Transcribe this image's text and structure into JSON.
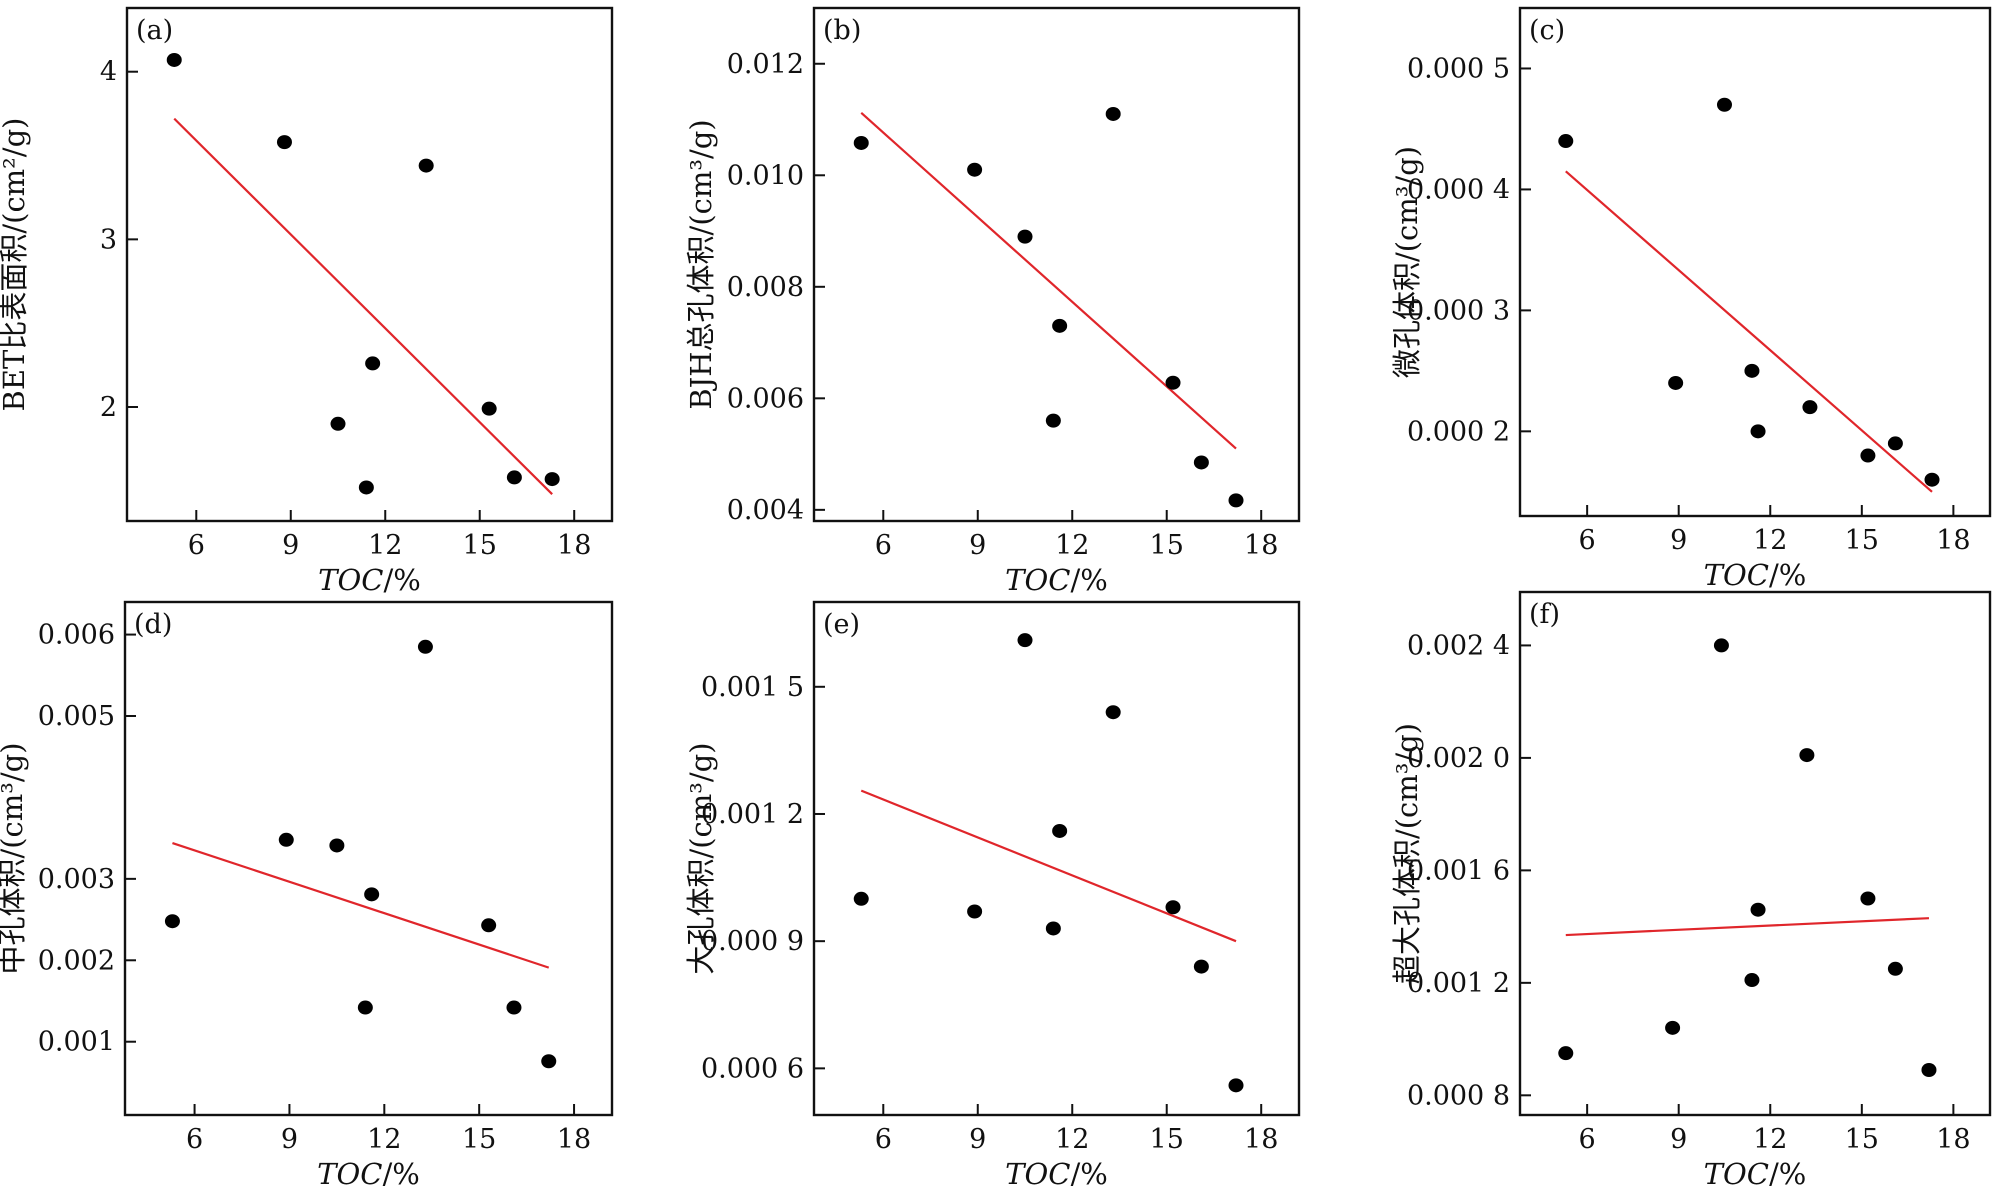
{
  "chart_data": [
    {
      "type": "scatter",
      "panel": "(a)",
      "ylabel": "BET比表面积/(cm²/g)",
      "xlabel": "TOC/%",
      "xlim": [
        3.8,
        19.2
      ],
      "ylim": [
        1.32,
        4.38
      ],
      "xticks": [
        6,
        9,
        12,
        15,
        18
      ],
      "xtick_labels": [
        "6",
        "9",
        "12",
        "15",
        "18"
      ],
      "yticks": [
        2,
        3,
        4
      ],
      "ytick_labels": [
        "2",
        "3",
        "4"
      ],
      "points": [
        [
          5.3,
          4.07
        ],
        [
          8.8,
          3.58
        ],
        [
          10.5,
          1.9
        ],
        [
          11.4,
          1.52
        ],
        [
          11.6,
          2.26
        ],
        [
          13.3,
          3.44
        ],
        [
          15.3,
          1.99
        ],
        [
          16.1,
          1.58
        ],
        [
          17.3,
          1.57
        ]
      ],
      "fit_line": [
        [
          5.3,
          3.72
        ],
        [
          17.3,
          1.48
        ]
      ]
    },
    {
      "type": "scatter",
      "panel": "(b)",
      "ylabel": "BJH总孔体积/(cm³/g)",
      "xlabel": "TOC/%",
      "xlim": [
        3.8,
        19.2
      ],
      "ylim": [
        0.0038,
        0.013
      ],
      "xticks": [
        6,
        9,
        12,
        15,
        18
      ],
      "xtick_labels": [
        "6",
        "9",
        "12",
        "15",
        "18"
      ],
      "yticks": [
        0.004,
        0.006,
        0.008,
        0.01,
        0.012
      ],
      "ytick_labels": [
        "0.004",
        "0.006",
        "0.008",
        "0.010",
        "0.012"
      ],
      "points": [
        [
          5.3,
          0.01058
        ],
        [
          8.9,
          0.0101
        ],
        [
          10.5,
          0.0089
        ],
        [
          11.4,
          0.0056
        ],
        [
          11.6,
          0.0073
        ],
        [
          13.3,
          0.0111
        ],
        [
          15.2,
          0.00628
        ],
        [
          16.1,
          0.00485
        ],
        [
          17.2,
          0.00417
        ]
      ],
      "fit_line": [
        [
          5.3,
          0.01112
        ],
        [
          17.2,
          0.0051
        ]
      ]
    },
    {
      "type": "scatter",
      "panel": "(c)",
      "ylabel": "微孔体积/(cm³/g)",
      "xlabel": "TOC/%",
      "xlim": [
        3.8,
        19.2
      ],
      "ylim": [
        0.00013,
        0.00055
      ],
      "xticks": [
        6,
        9,
        12,
        15,
        18
      ],
      "xtick_labels": [
        "6",
        "9",
        "12",
        "15",
        "18"
      ],
      "yticks": [
        0.0002,
        0.0003,
        0.0004,
        0.0005
      ],
      "ytick_labels": [
        "0.000 2",
        "0.000 3",
        "0.000 4",
        "0.000 5"
      ],
      "points": [
        [
          5.3,
          0.00044
        ],
        [
          8.9,
          0.00024
        ],
        [
          10.5,
          0.00047
        ],
        [
          11.4,
          0.00025
        ],
        [
          11.6,
          0.0002
        ],
        [
          13.3,
          0.00022
        ],
        [
          15.2,
          0.00018
        ],
        [
          16.1,
          0.00019
        ],
        [
          17.3,
          0.00016
        ]
      ],
      "fit_line": [
        [
          5.3,
          0.000415
        ],
        [
          17.3,
          0.00015
        ]
      ]
    },
    {
      "type": "scatter",
      "panel": "(d)",
      "ylabel": "中孔体积/(cm³/g)",
      "xlabel": "TOC/%",
      "xlim": [
        3.8,
        19.2
      ],
      "ylim": [
        0.0001,
        0.0064
      ],
      "xticks": [
        6,
        9,
        12,
        15,
        18
      ],
      "xtick_labels": [
        "6",
        "9",
        "12",
        "15",
        "18"
      ],
      "yticks": [
        0.001,
        0.002,
        0.003,
        0.005,
        0.006
      ],
      "ytick_labels": [
        "0.001",
        "0.002",
        "0.003",
        "0.005",
        "0.006"
      ],
      "points": [
        [
          5.3,
          0.00248
        ],
        [
          8.9,
          0.00348
        ],
        [
          10.5,
          0.00341
        ],
        [
          11.4,
          0.00142
        ],
        [
          11.6,
          0.00281
        ],
        [
          13.3,
          0.00585
        ],
        [
          15.3,
          0.00243
        ],
        [
          16.1,
          0.00142
        ],
        [
          17.2,
          0.00076
        ]
      ],
      "fit_line": [
        [
          5.3,
          0.00344
        ],
        [
          17.2,
          0.00191
        ]
      ]
    },
    {
      "type": "scatter",
      "panel": "(e)",
      "ylabel": "大孔体积/(cm³/g)",
      "xlabel": "TOC/%",
      "xlim": [
        3.8,
        19.2
      ],
      "ylim": [
        0.00049,
        0.0017
      ],
      "xticks": [
        6,
        9,
        12,
        15,
        18
      ],
      "xtick_labels": [
        "6",
        "9",
        "12",
        "15",
        "18"
      ],
      "yticks": [
        0.0006,
        0.0009,
        0.0012,
        0.0015
      ],
      "ytick_labels": [
        "0.000 6",
        "0.000 9",
        "0.001 2",
        "0.001 5"
      ],
      "points": [
        [
          5.3,
          0.001
        ],
        [
          8.9,
          0.00097
        ],
        [
          10.5,
          0.00161
        ],
        [
          11.4,
          0.00093
        ],
        [
          11.6,
          0.00116
        ],
        [
          13.3,
          0.00144
        ],
        [
          15.2,
          0.00098
        ],
        [
          16.1,
          0.00084
        ],
        [
          17.2,
          0.00056
        ]
      ],
      "fit_line": [
        [
          5.3,
          0.001255
        ],
        [
          17.2,
          0.0009
        ]
      ]
    },
    {
      "type": "scatter",
      "panel": "(f)",
      "ylabel": "超大孔体积/(cm³/g)",
      "xlabel": "TOC/%",
      "xlim": [
        3.8,
        19.2
      ],
      "ylim": [
        0.00073,
        0.00259
      ],
      "xticks": [
        6,
        9,
        12,
        15,
        18
      ],
      "xtick_labels": [
        "6",
        "9",
        "12",
        "15",
        "18"
      ],
      "yticks": [
        0.0008,
        0.0012,
        0.0016,
        0.002,
        0.0024
      ],
      "ytick_labels": [
        "0.000 8",
        "0.001 2",
        "0.001 6",
        "0.002 0",
        "0.002 4"
      ],
      "points": [
        [
          5.3,
          0.00095
        ],
        [
          8.8,
          0.00104
        ],
        [
          10.4,
          0.0024
        ],
        [
          11.4,
          0.00121
        ],
        [
          11.6,
          0.00146
        ],
        [
          13.2,
          0.00201
        ],
        [
          15.2,
          0.0015
        ],
        [
          16.1,
          0.00125
        ],
        [
          17.2,
          0.00089
        ]
      ],
      "fit_line": [
        [
          5.3,
          0.00137
        ],
        [
          17.2,
          0.00143
        ]
      ]
    }
  ]
}
